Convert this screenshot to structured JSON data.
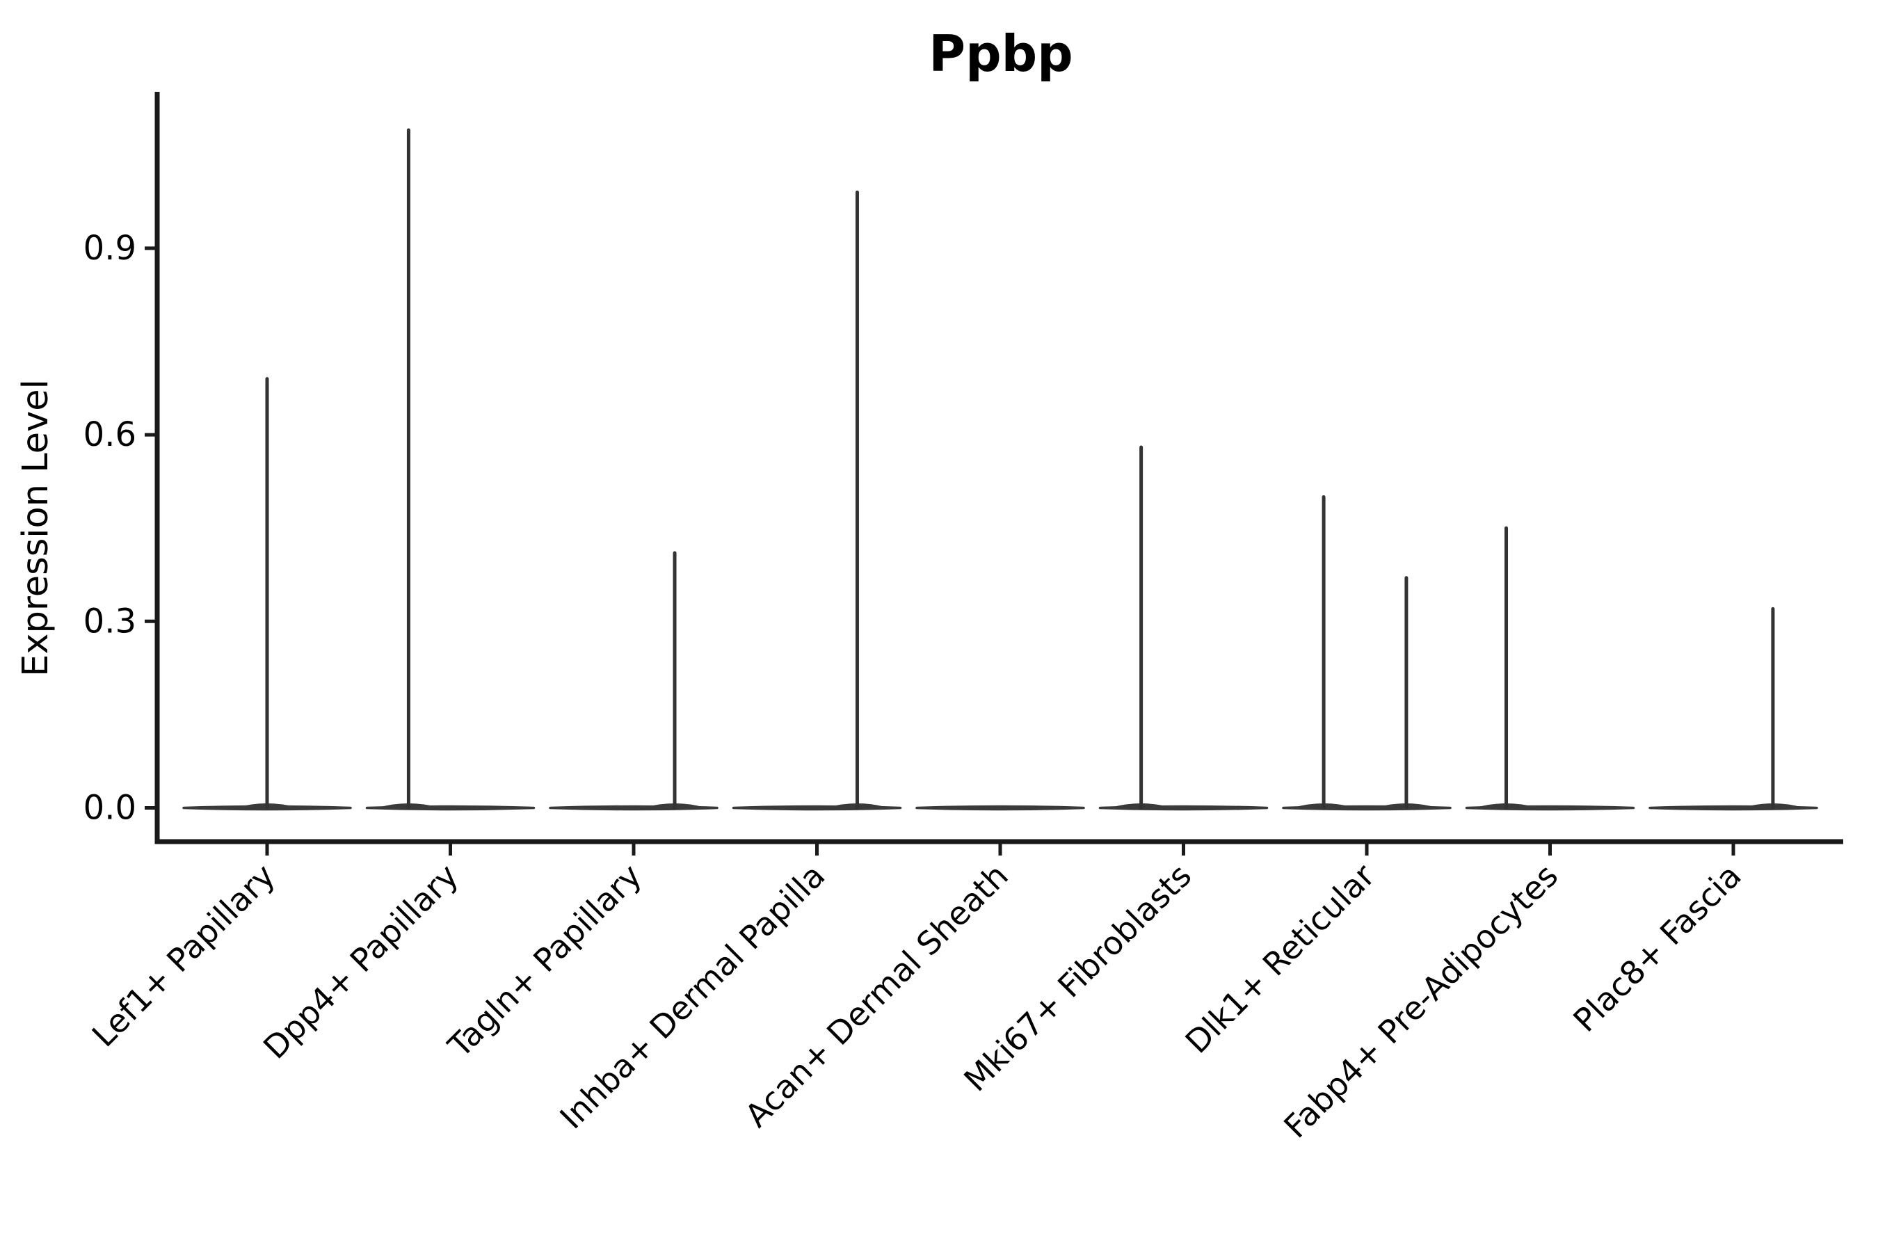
{
  "title": "Ppbp",
  "axes": {
    "ylabel": "Expression Level",
    "ytick_labels": [
      "0.0",
      "0.3",
      "0.6",
      "0.9"
    ]
  },
  "colors": {
    "background": "#ffffff",
    "spine": "#1a1a1a",
    "tick": "#1a1a1a",
    "violin_stroke": "#3a3a3a",
    "spike": "#333333",
    "text": "#000000"
  },
  "chart_data": {
    "type": "violin",
    "title": "Ppbp",
    "xlabel": "",
    "ylabel": "Expression Level",
    "ylim": [
      0,
      1.14
    ],
    "yticks": [
      0.0,
      0.3,
      0.6,
      0.9
    ],
    "grid": false,
    "legend": "none",
    "orientation": "vertical",
    "note": "Single-cell gene expression violin plot; nearly all cells at 0 expression per cluster, each violin collapses to a flat baseline with thin spikes reaching the maximum expressing cells",
    "categories": [
      "Lef1+ Papillary",
      "Dpp4+ Papillary",
      "Tagln+ Papillary",
      "Inhba+ Dermal Papilla",
      "Acan+ Dermal Sheath",
      "Mki67+ Fibroblasts",
      "Dlk1+ Reticular",
      "Fabp4+ Pre-Adipocytes",
      "Plac8+ Fascia"
    ],
    "violins": [
      {
        "label": "Lef1+ Papillary",
        "baseline_value": 0.0,
        "spikes": [
          {
            "value": 0.69,
            "offset_frac": 0.0
          }
        ]
      },
      {
        "label": "Dpp4+ Papillary",
        "baseline_value": 0.0,
        "spikes": [
          {
            "value": 1.09,
            "offset_frac": -0.228
          }
        ]
      },
      {
        "label": "Tagln+ Papillary",
        "baseline_value": 0.0,
        "spikes": [
          {
            "value": 0.41,
            "offset_frac": 0.224
          }
        ]
      },
      {
        "label": "Inhba+ Dermal Papilla",
        "baseline_value": 0.0,
        "spikes": [
          {
            "value": 0.99,
            "offset_frac": 0.22
          }
        ]
      },
      {
        "label": "Acan+ Dermal Sheath",
        "baseline_value": 0.0,
        "spikes": []
      },
      {
        "label": "Mki67+ Fibroblasts",
        "baseline_value": 0.0,
        "spikes": [
          {
            "value": 0.58,
            "offset_frac": -0.231
          }
        ]
      },
      {
        "label": "Dlk1+ Reticular",
        "baseline_value": 0.0,
        "spikes": [
          {
            "value": 0.5,
            "offset_frac": -0.235
          },
          {
            "value": 0.37,
            "offset_frac": 0.216
          }
        ]
      },
      {
        "label": "Fabp4+ Pre-Adipocytes",
        "baseline_value": 0.0,
        "spikes": [
          {
            "value": 0.45,
            "offset_frac": -0.239
          }
        ]
      },
      {
        "label": "Plac8+ Fascia",
        "baseline_value": 0.0,
        "spikes": [
          {
            "value": 0.32,
            "offset_frac": 0.216
          }
        ]
      }
    ]
  }
}
